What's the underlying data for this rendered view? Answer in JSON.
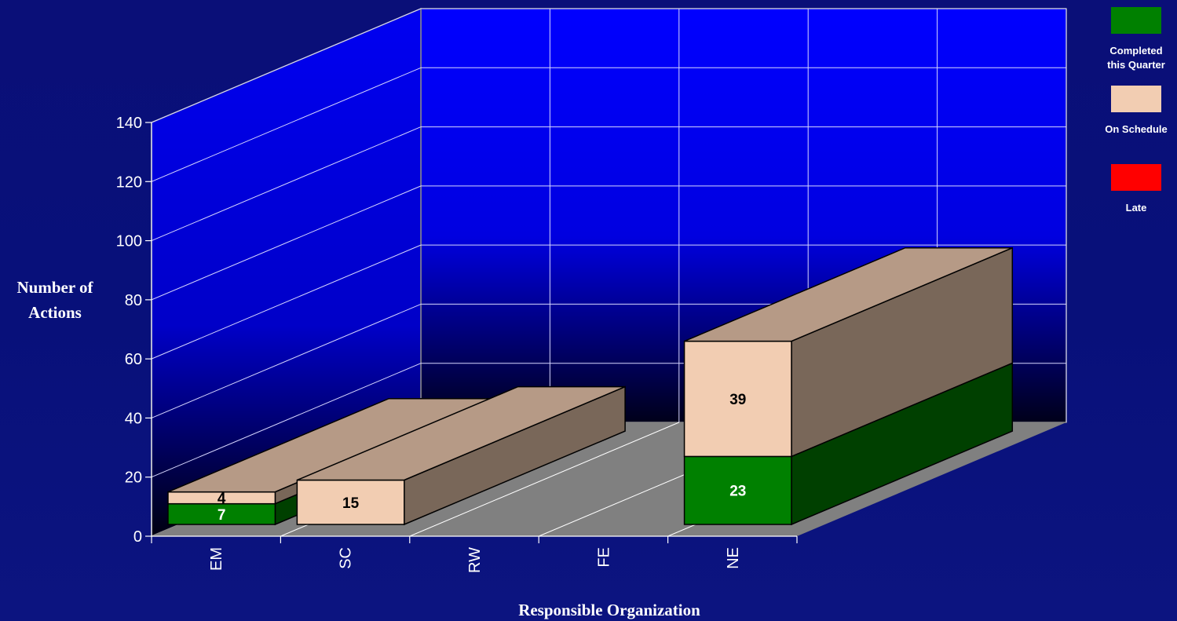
{
  "chart_data": {
    "type": "bar",
    "title": "",
    "xlabel": "Responsible Organization",
    "ylabel": "Number of Actions",
    "categories": [
      "EM",
      "SC",
      "RW",
      "FE",
      "NE"
    ],
    "series": [
      {
        "name": "Completed this Quarter",
        "color": "#008000",
        "values": [
          7,
          0,
          0,
          0,
          23
        ]
      },
      {
        "name": "On Schedule",
        "color": "#f2cdb2",
        "values": [
          4,
          15,
          0,
          0,
          39
        ]
      },
      {
        "name": "Late",
        "color": "#ff0000",
        "values": [
          0,
          0,
          0,
          0,
          0
        ]
      }
    ],
    "ylim": [
      0,
      140
    ],
    "yticks": [
      0,
      20,
      40,
      60,
      80,
      100,
      120,
      140
    ],
    "grid": true,
    "legend_position": "right",
    "three_d": true
  },
  "legend": {
    "items": [
      {
        "label_lines": [
          "Completed",
          "this Quarter"
        ],
        "color": "#008000"
      },
      {
        "label_lines": [
          "On Schedule"
        ],
        "color": "#f2cdb2"
      },
      {
        "label_lines": [
          "Late"
        ],
        "color": "#ff0000"
      }
    ]
  }
}
